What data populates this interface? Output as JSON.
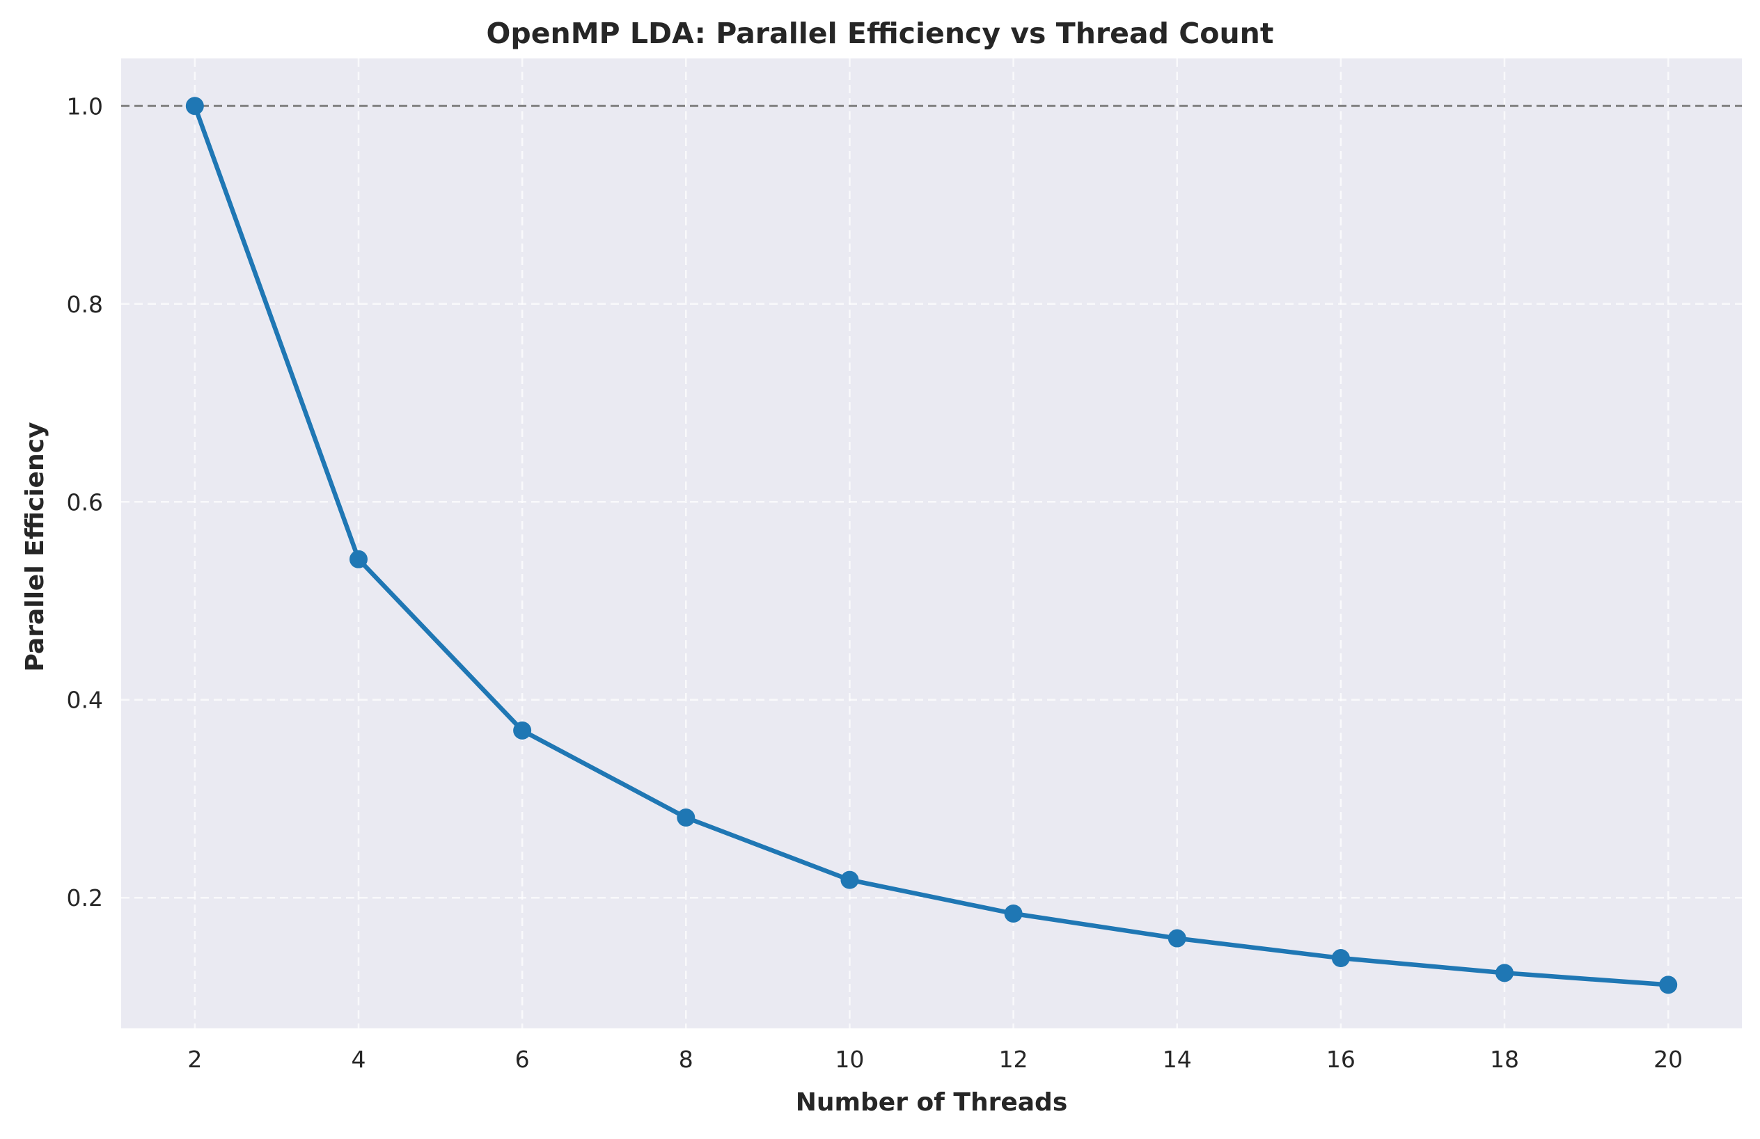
{
  "chart_data": {
    "type": "line",
    "title": "OpenMP LDA: Parallel Efficiency vs Thread Count",
    "xlabel": "Number of Threads",
    "ylabel": "Parallel Efficiency",
    "x": [
      2,
      4,
      6,
      8,
      10,
      12,
      14,
      16,
      18,
      20
    ],
    "series": [
      {
        "values": [
          1.0,
          0.542,
          0.369,
          0.281,
          0.218,
          0.184,
          0.159,
          0.139,
          0.124,
          0.112
        ],
        "color": "#1f77b4",
        "marker": "circle"
      }
    ],
    "reference_line": {
      "y": 1.0,
      "style": "dashed",
      "color": "#808080"
    },
    "xlim": [
      1.1,
      20.9
    ],
    "ylim": [
      0.068,
      1.048
    ],
    "xticks": [
      2,
      4,
      6,
      8,
      10,
      12,
      14,
      16,
      18,
      20
    ],
    "yticks": [
      0.2,
      0.4,
      0.6,
      0.8,
      1.0
    ],
    "grid": true,
    "grid_style": "dashed",
    "background": "#eaeaf2"
  }
}
